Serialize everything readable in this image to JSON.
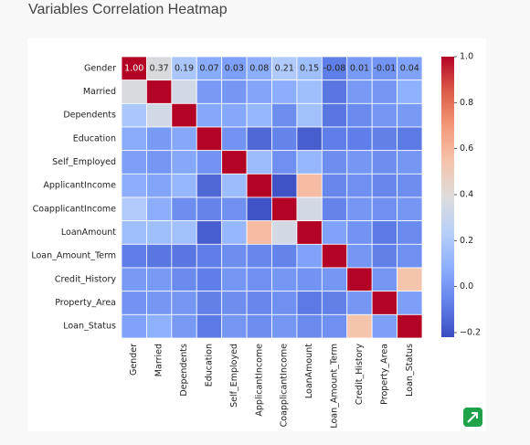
{
  "chart_data": {
    "type": "heatmap",
    "title": "Variables Correlation Heatmap",
    "categories": [
      "Gender",
      "Married",
      "Dependents",
      "Education",
      "Self_Employed",
      "ApplicantIncome",
      "CoapplicantIncome",
      "LoanAmount",
      "Loan_Amount_Term",
      "Credit_History",
      "Property_Area",
      "Loan_Status"
    ],
    "values": [
      [
        1.0,
        0.37,
        0.19,
        0.07,
        0.03,
        0.08,
        0.21,
        0.15,
        -0.08,
        0.01,
        -0.01,
        0.04
      ],
      [
        0.37,
        1.0,
        0.34,
        0.01,
        0.0,
        0.05,
        0.08,
        0.15,
        -0.1,
        0.01,
        0.0,
        0.09
      ],
      [
        0.19,
        0.34,
        1.0,
        0.06,
        0.06,
        0.12,
        -0.03,
        0.16,
        -0.1,
        -0.04,
        0.0,
        0.01
      ],
      [
        0.07,
        0.01,
        0.06,
        1.0,
        -0.01,
        -0.14,
        -0.06,
        -0.17,
        -0.08,
        -0.08,
        -0.07,
        -0.09
      ],
      [
        0.03,
        0.0,
        0.06,
        -0.01,
        1.0,
        0.14,
        -0.02,
        0.12,
        -0.03,
        0.0,
        -0.03,
        0.0
      ],
      [
        0.08,
        0.05,
        0.12,
        -0.14,
        0.14,
        1.0,
        -0.2,
        0.57,
        -0.05,
        -0.02,
        -0.05,
        -0.03
      ],
      [
        0.21,
        0.08,
        -0.03,
        -0.06,
        -0.02,
        -0.2,
        1.0,
        0.35,
        -0.06,
        0.0,
        -0.02,
        0.0
      ],
      [
        0.15,
        0.15,
        0.16,
        -0.17,
        0.12,
        0.57,
        0.35,
        1.0,
        0.04,
        -0.01,
        -0.09,
        -0.04
      ],
      [
        -0.08,
        -0.1,
        -0.1,
        -0.08,
        -0.03,
        -0.05,
        -0.06,
        0.04,
        1.0,
        0.0,
        -0.07,
        -0.02
      ],
      [
        0.01,
        0.01,
        -0.04,
        -0.08,
        0.0,
        -0.02,
        0.0,
        -0.01,
        0.0,
        1.0,
        0.0,
        0.54
      ],
      [
        -0.01,
        0.0,
        0.0,
        -0.07,
        -0.03,
        -0.05,
        -0.02,
        -0.09,
        -0.07,
        0.0,
        1.0,
        0.03
      ],
      [
        0.04,
        0.09,
        0.01,
        -0.09,
        0.0,
        -0.03,
        0.0,
        -0.04,
        -0.02,
        0.54,
        0.03,
        1.0
      ]
    ],
    "value_labels": [
      [
        "1.00",
        "0.37",
        "0.19",
        "0.07",
        "0.03",
        "0.08",
        "0.21",
        "0.15",
        "-0.08",
        "0.01",
        "-0.01",
        "0.04"
      ],
      null,
      null,
      null,
      null,
      null,
      null,
      null,
      null,
      null,
      null,
      null
    ],
    "zlim": [
      -0.22,
      1.0
    ],
    "zticks": [
      {
        "value": -0.2,
        "label": "−0.2"
      },
      {
        "value": 0,
        "label": "0.0"
      },
      0.2,
      0.4,
      0.6,
      0.8,
      {
        "value": 1,
        "label": "1.0"
      }
    ],
    "colors": [
      "#3b4cc0",
      "#6282ea",
      "#8db0fe",
      "#b8d0f9",
      "#dddcdc",
      "#f5c4ac",
      "#f49a7b",
      "#dc5d4a",
      "#b40426"
    ]
  }
}
